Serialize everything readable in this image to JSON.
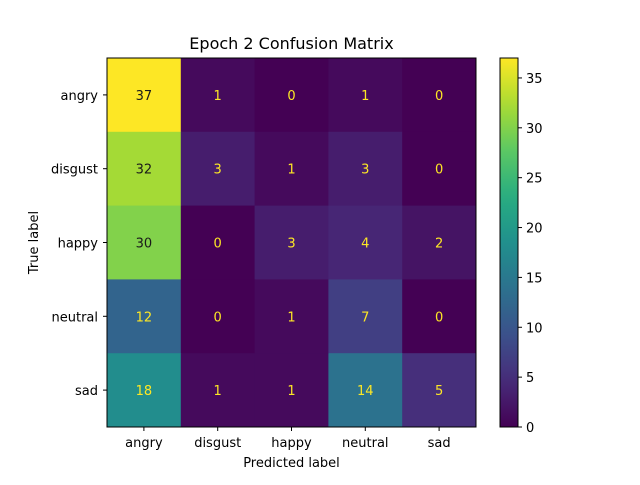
{
  "chart_data": {
    "type": "heatmap",
    "title": "Epoch 2 Confusion Matrix",
    "xlabel": "Predicted label",
    "ylabel": "True label",
    "x_categories": [
      "angry",
      "disgust",
      "happy",
      "neutral",
      "sad"
    ],
    "y_categories": [
      "angry",
      "disgust",
      "happy",
      "neutral",
      "sad"
    ],
    "values": [
      [
        37,
        1,
        0,
        1,
        0
      ],
      [
        32,
        3,
        1,
        3,
        0
      ],
      [
        30,
        0,
        3,
        4,
        2
      ],
      [
        12,
        0,
        1,
        7,
        0
      ],
      [
        18,
        1,
        1,
        14,
        5
      ]
    ],
    "colormap": "viridis",
    "vmin": 0,
    "vmax": 37,
    "colorbar_ticks": [
      0,
      5,
      10,
      15,
      20,
      25,
      30,
      35
    ],
    "grid": false
  }
}
